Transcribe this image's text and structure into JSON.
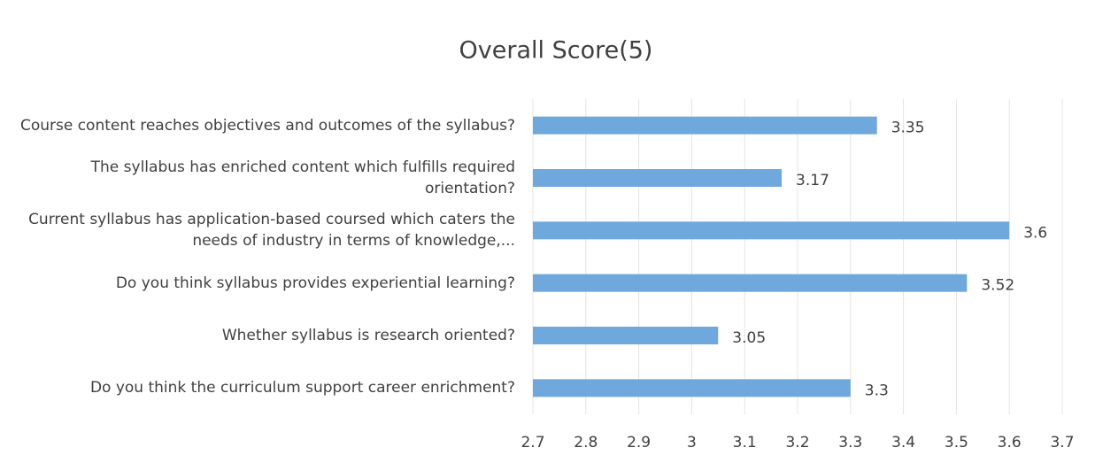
{
  "chart_data": {
    "type": "bar",
    "orientation": "horizontal",
    "title": "Overall Score(5)",
    "categories": [
      "Course content reaches objectives and outcomes of the syllabus?",
      "The syllabus has enriched content which fulfills required orientation?",
      "Current syllabus has application-based coursed which caters the needs of industry in terms of knowledge,...",
      "Do you think syllabus provides experiential learning?",
      "Whether syllabus is research oriented?",
      "Do you think the curriculum support career enrichment?"
    ],
    "values": [
      3.35,
      3.17,
      3.6,
      3.52,
      3.05,
      3.3
    ],
    "color": "#6fa8dc",
    "xlim": [
      2.7,
      3.7
    ],
    "xticks": [
      2.7,
      2.8,
      2.9,
      3,
      3.1,
      3.2,
      3.3,
      3.4,
      3.5,
      3.6,
      3.7
    ],
    "grid": true
  }
}
